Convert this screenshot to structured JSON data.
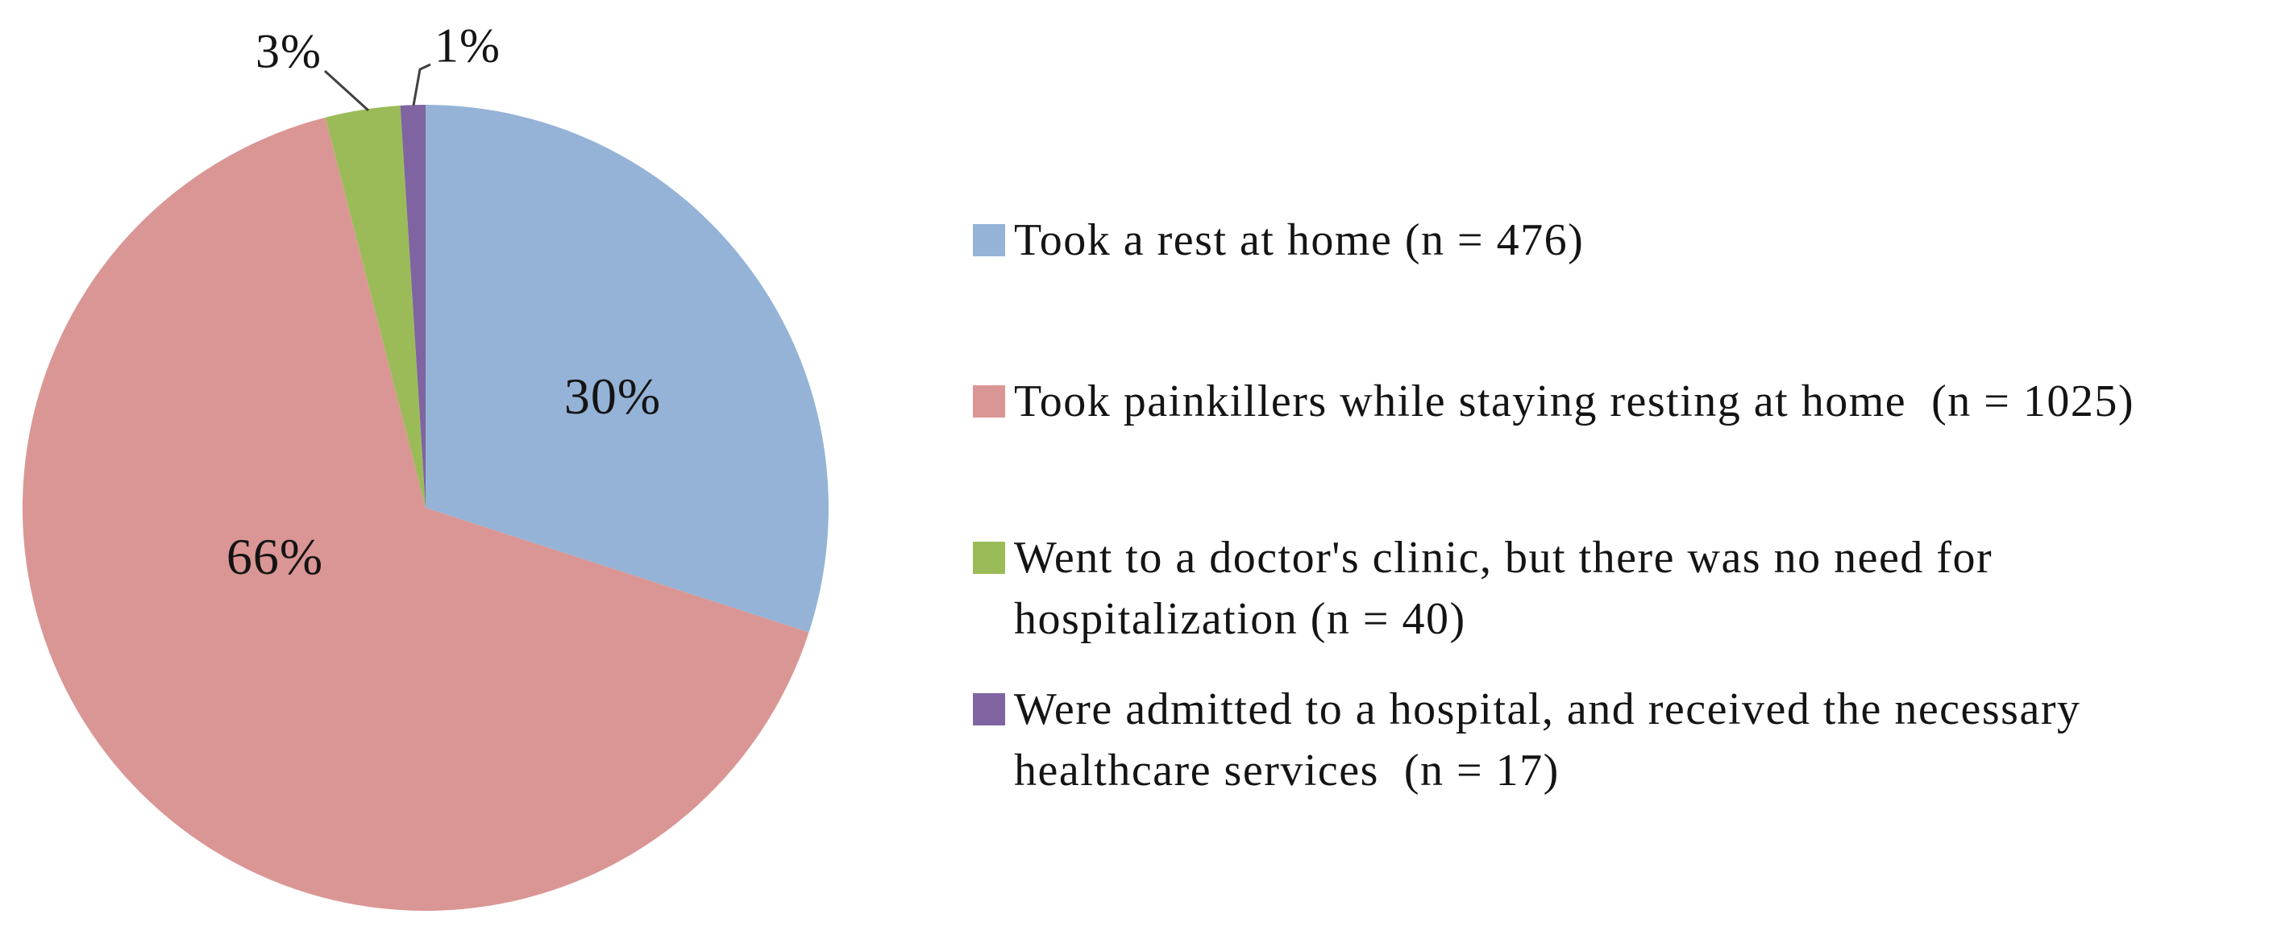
{
  "chart_data": {
    "type": "pie",
    "title": "",
    "start_angle_deg": 0,
    "direction": "clockwise",
    "legend_position": "right",
    "slices": [
      {
        "label": "Took a rest at home (n = 476)",
        "percent": 30,
        "n": 476,
        "percent_label": "30%",
        "color": "#95B3D7",
        "label_placement": "inside"
      },
      {
        "label": "Took painkillers while staying resting at home  (n = 1025)",
        "percent": 66,
        "n": 1025,
        "percent_label": "66%",
        "color": "#DA9694",
        "label_placement": "inside"
      },
      {
        "label": "Went to a doctor's clinic, but there was no need for hospitalization (n = 40)",
        "percent": 3,
        "n": 40,
        "percent_label": "3%",
        "color": "#9BBB59",
        "label_placement": "outside-with-leader-line"
      },
      {
        "label": "Were admitted to a hospital, and received the necessary healthcare services  (n = 17)",
        "percent": 1,
        "n": 17,
        "percent_label": "1%",
        "color": "#8064A2",
        "label_placement": "outside-with-leader-line"
      }
    ]
  },
  "legend": {
    "items": [
      {
        "lines": [
          "Took a rest at home (n = 476)"
        ]
      },
      {
        "lines": [
          "Took painkillers while staying resting at home  (n = 1025)"
        ]
      },
      {
        "lines": [
          "Went to a doctor's clinic, but there was no need for",
          "hospitalization (n = 40)"
        ]
      },
      {
        "lines": [
          "Were admitted to a hospital, and received the necessary",
          "healthcare services  (n = 17)"
        ]
      }
    ]
  }
}
